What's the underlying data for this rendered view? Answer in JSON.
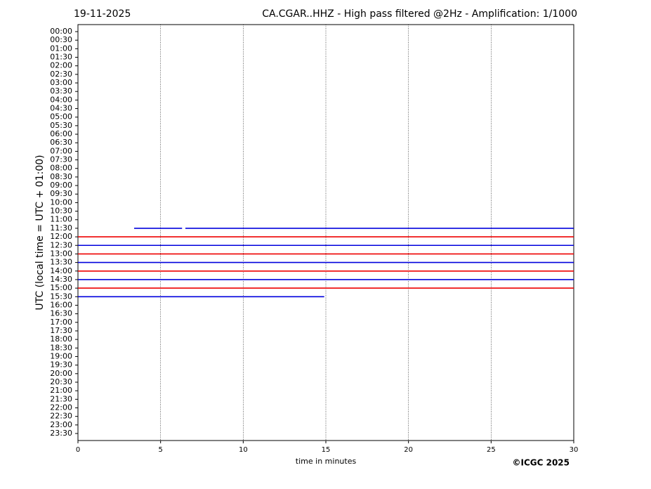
{
  "chart_data": {
    "type": "helicorder",
    "date": "19-11-2025",
    "title": "CA.CGAR..HHZ - High pass filtered @2Hz - Amplification: 1/1000",
    "x_label": "time in minutes",
    "y_label": "UTC (local time = UTC + 01:00)",
    "credit": "©ICGC 2025",
    "categories": [
      "00:00",
      "00:30",
      "01:00",
      "01:30",
      "02:00",
      "02:30",
      "03:00",
      "03:30",
      "04:00",
      "04:30",
      "05:00",
      "05:30",
      "06:00",
      "06:30",
      "07:00",
      "07:30",
      "08:00",
      "08:30",
      "09:00",
      "09:30",
      "10:00",
      "10:30",
      "11:00",
      "11:30",
      "12:00",
      "12:30",
      "13:00",
      "13:30",
      "14:00",
      "14:30",
      "15:00",
      "15:30",
      "16:00",
      "16:30",
      "17:00",
      "17:30",
      "18:00",
      "18:30",
      "19:00",
      "19:30",
      "20:00",
      "20:30",
      "21:00",
      "21:30",
      "22:00",
      "22:30",
      "23:00",
      "23:30"
    ],
    "xlim": [
      0,
      30
    ],
    "xticks": [
      0,
      5,
      10,
      15,
      20,
      25,
      30
    ],
    "grid": true,
    "traces": [
      {
        "category": "11:30",
        "color": "#0000dd",
        "segments": [
          [
            3.4,
            6.3
          ],
          [
            6.5,
            30
          ]
        ]
      },
      {
        "category": "12:00",
        "color": "#ee0000",
        "segments": [
          [
            0,
            30
          ]
        ]
      },
      {
        "category": "12:30",
        "color": "#0000dd",
        "segments": [
          [
            0,
            30
          ]
        ]
      },
      {
        "category": "13:00",
        "color": "#ee0000",
        "segments": [
          [
            0,
            30
          ]
        ]
      },
      {
        "category": "13:30",
        "color": "#0000dd",
        "segments": [
          [
            0,
            30
          ]
        ]
      },
      {
        "category": "14:00",
        "color": "#ee0000",
        "segments": [
          [
            0,
            30
          ]
        ]
      },
      {
        "category": "14:30",
        "color": "#0000dd",
        "segments": [
          [
            0,
            30
          ]
        ]
      },
      {
        "category": "15:00",
        "color": "#ee0000",
        "segments": [
          [
            0,
            30
          ]
        ]
      },
      {
        "category": "15:30",
        "color": "#0000dd",
        "segments": [
          [
            0,
            14.9
          ]
        ]
      }
    ]
  }
}
